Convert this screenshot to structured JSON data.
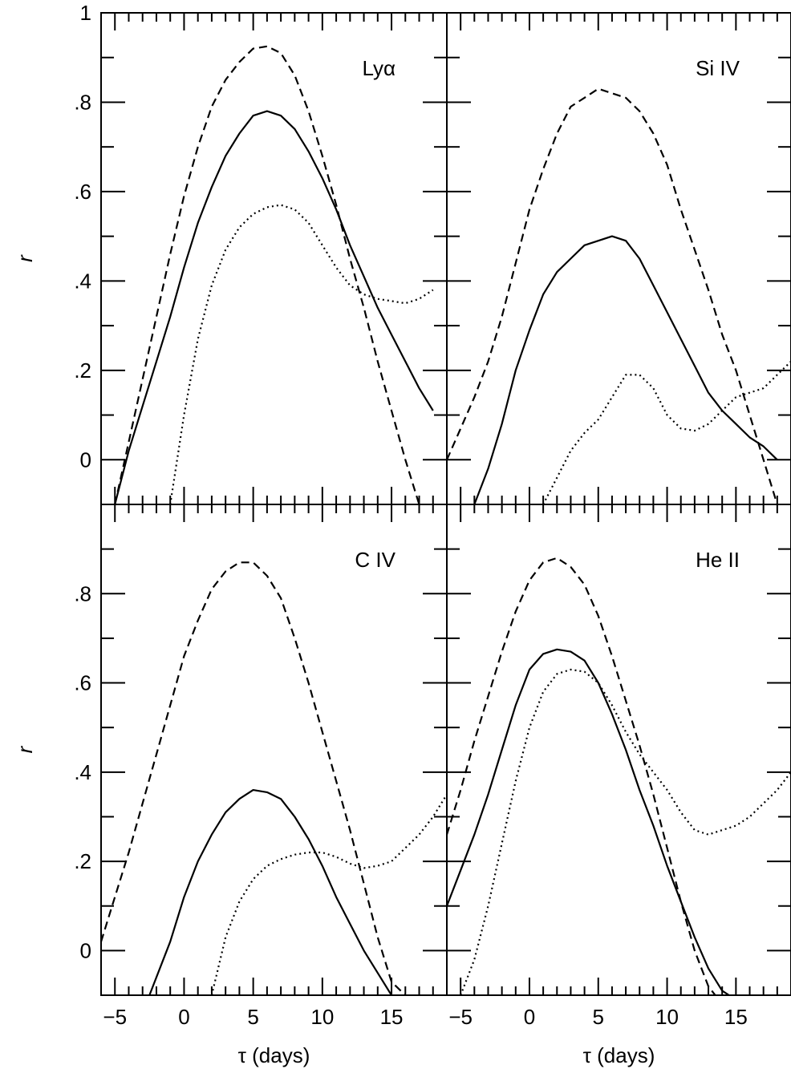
{
  "chart_data": [
    {
      "type": "line",
      "title": "",
      "panel_label": "Lyα",
      "xlabel": "",
      "ylabel": "r",
      "xlim": [
        -6,
        19
      ],
      "ylim": [
        -0.1,
        1
      ],
      "xticks": [],
      "yticks": [
        "1",
        ".8",
        ".6",
        ".4",
        ".2",
        "0"
      ],
      "legend": "none",
      "series": [
        {
          "style": "solid",
          "x": [
            -5,
            -4,
            -3,
            -2,
            -1,
            0,
            1,
            2,
            3,
            4,
            5,
            6,
            7,
            8,
            9,
            10,
            11,
            12,
            13,
            14,
            15,
            16,
            17,
            18
          ],
          "y": [
            -0.1,
            0.02,
            0.12,
            0.22,
            0.32,
            0.43,
            0.53,
            0.61,
            0.68,
            0.73,
            0.77,
            0.78,
            0.77,
            0.74,
            0.69,
            0.63,
            0.56,
            0.48,
            0.41,
            0.34,
            0.28,
            0.22,
            0.16,
            0.11
          ]
        },
        {
          "style": "dashed",
          "x": [
            -5,
            -4,
            -3,
            -2,
            -1,
            0,
            1,
            2,
            3,
            4,
            5,
            6,
            7,
            8,
            9,
            10,
            11,
            12,
            13,
            14,
            15,
            16,
            17
          ],
          "y": [
            -0.1,
            0.04,
            0.18,
            0.32,
            0.46,
            0.59,
            0.7,
            0.79,
            0.85,
            0.89,
            0.92,
            0.925,
            0.91,
            0.86,
            0.78,
            0.68,
            0.57,
            0.45,
            0.34,
            0.22,
            0.11,
            0.0,
            -0.1
          ]
        },
        {
          "style": "dotted",
          "x": [
            -1,
            0,
            1,
            2,
            3,
            4,
            5,
            6,
            7,
            8,
            9,
            10,
            11,
            12,
            13,
            14,
            15,
            16,
            17,
            18
          ],
          "y": [
            -0.1,
            0.1,
            0.27,
            0.39,
            0.47,
            0.52,
            0.55,
            0.565,
            0.57,
            0.56,
            0.53,
            0.48,
            0.43,
            0.39,
            0.37,
            0.36,
            0.355,
            0.35,
            0.36,
            0.38
          ]
        }
      ]
    },
    {
      "type": "line",
      "title": "",
      "panel_label": "Si IV",
      "xlabel": "",
      "ylabel": "",
      "xlim": [
        -6,
        19
      ],
      "ylim": [
        -0.1,
        1
      ],
      "xticks": [],
      "yticks": [],
      "legend": "none",
      "series": [
        {
          "style": "solid",
          "x": [
            -4,
            -3,
            -2,
            -1,
            0,
            1,
            2,
            3,
            4,
            5,
            6,
            7,
            8,
            9,
            10,
            11,
            12,
            13,
            14,
            15,
            16,
            17,
            18
          ],
          "y": [
            -0.1,
            -0.02,
            0.08,
            0.2,
            0.29,
            0.37,
            0.42,
            0.45,
            0.48,
            0.49,
            0.5,
            0.49,
            0.45,
            0.39,
            0.33,
            0.27,
            0.21,
            0.15,
            0.11,
            0.08,
            0.05,
            0.03,
            0.0
          ]
        },
        {
          "style": "dashed",
          "x": [
            -6,
            -5,
            -4,
            -3,
            -2,
            -1,
            0,
            1,
            2,
            3,
            4,
            5,
            6,
            7,
            8,
            9,
            10,
            11,
            12,
            13,
            14,
            15,
            16,
            17,
            18
          ],
          "y": [
            0.0,
            0.07,
            0.14,
            0.22,
            0.32,
            0.44,
            0.56,
            0.65,
            0.73,
            0.79,
            0.81,
            0.83,
            0.82,
            0.81,
            0.78,
            0.73,
            0.66,
            0.56,
            0.47,
            0.38,
            0.28,
            0.2,
            0.1,
            0.0,
            -0.1
          ]
        },
        {
          "style": "dotted",
          "x": [
            1,
            2,
            3,
            4,
            5,
            6,
            7,
            8,
            9,
            10,
            11,
            12,
            13,
            14,
            15,
            16,
            17,
            18,
            19
          ],
          "y": [
            -0.1,
            -0.04,
            0.02,
            0.06,
            0.09,
            0.14,
            0.19,
            0.19,
            0.16,
            0.1,
            0.07,
            0.065,
            0.08,
            0.11,
            0.14,
            0.15,
            0.16,
            0.19,
            0.22
          ]
        }
      ]
    },
    {
      "type": "line",
      "title": "",
      "panel_label": "C IV",
      "xlabel": "τ (days)",
      "ylabel": "r",
      "xlim": [
        -6,
        19
      ],
      "ylim": [
        -0.1,
        1
      ],
      "xticks": [
        "−5",
        "0",
        "5",
        "10",
        "15"
      ],
      "yticks": [
        ".8",
        ".6",
        ".4",
        ".2",
        "0"
      ],
      "legend": "none",
      "series": [
        {
          "style": "solid",
          "x": [
            -2.5,
            -1,
            0,
            1,
            2,
            3,
            4,
            5,
            6,
            7,
            8,
            9,
            10,
            11,
            12,
            13,
            14,
            15
          ],
          "y": [
            -0.1,
            0.02,
            0.12,
            0.2,
            0.26,
            0.31,
            0.34,
            0.36,
            0.355,
            0.34,
            0.3,
            0.25,
            0.19,
            0.12,
            0.06,
            0.0,
            -0.05,
            -0.1
          ]
        },
        {
          "style": "dashed",
          "x": [
            -6,
            -5,
            -4,
            -3,
            -2,
            -1,
            0,
            1,
            2,
            3,
            4,
            5,
            6,
            7,
            8,
            9,
            10,
            11,
            12,
            13,
            14,
            15,
            16
          ],
          "y": [
            0.02,
            0.12,
            0.22,
            0.33,
            0.44,
            0.55,
            0.66,
            0.74,
            0.81,
            0.85,
            0.87,
            0.87,
            0.84,
            0.79,
            0.7,
            0.6,
            0.49,
            0.38,
            0.27,
            0.15,
            0.03,
            -0.07,
            -0.1
          ]
        },
        {
          "style": "dotted",
          "x": [
            2,
            3,
            4,
            5,
            6,
            7,
            8,
            9,
            10,
            11,
            12,
            13,
            14,
            15,
            16,
            17,
            18,
            19
          ],
          "y": [
            -0.1,
            0.03,
            0.11,
            0.16,
            0.19,
            0.205,
            0.215,
            0.22,
            0.22,
            0.21,
            0.195,
            0.185,
            0.19,
            0.2,
            0.23,
            0.26,
            0.3,
            0.35
          ]
        }
      ]
    },
    {
      "type": "line",
      "title": "",
      "panel_label": "He II",
      "xlabel": "τ (days)",
      "ylabel": "",
      "xlim": [
        -6,
        19
      ],
      "ylim": [
        -0.1,
        1
      ],
      "xticks": [
        "−5",
        "0",
        "5",
        "10",
        "15"
      ],
      "yticks": [],
      "legend": "none",
      "series": [
        {
          "style": "solid",
          "x": [
            -6,
            -5,
            -4,
            -3,
            -2,
            -1,
            0,
            1,
            2,
            3,
            4,
            5,
            6,
            7,
            8,
            9,
            10,
            11,
            12,
            13,
            14,
            14.5
          ],
          "y": [
            0.1,
            0.18,
            0.26,
            0.35,
            0.45,
            0.55,
            0.63,
            0.665,
            0.675,
            0.67,
            0.65,
            0.6,
            0.53,
            0.45,
            0.36,
            0.28,
            0.19,
            0.11,
            0.03,
            -0.04,
            -0.09,
            -0.1
          ]
        },
        {
          "style": "dashed",
          "x": [
            -6,
            -5,
            -4,
            -3,
            -2,
            -1,
            0,
            1,
            2,
            3,
            4,
            5,
            6,
            7,
            8,
            9,
            10,
            11,
            12,
            13,
            13.5
          ],
          "y": [
            0.26,
            0.36,
            0.47,
            0.57,
            0.67,
            0.76,
            0.83,
            0.87,
            0.88,
            0.86,
            0.82,
            0.75,
            0.66,
            0.56,
            0.46,
            0.35,
            0.23,
            0.11,
            0.0,
            -0.08,
            -0.1
          ]
        },
        {
          "style": "dotted",
          "x": [
            -5,
            -4,
            -3,
            -2,
            -1,
            0,
            1,
            2,
            3,
            4,
            5,
            6,
            7,
            8,
            9,
            10,
            11,
            12,
            13,
            14,
            15,
            16,
            17,
            18,
            19
          ],
          "y": [
            -0.1,
            -0.02,
            0.1,
            0.24,
            0.38,
            0.5,
            0.58,
            0.62,
            0.63,
            0.625,
            0.6,
            0.55,
            0.49,
            0.44,
            0.4,
            0.36,
            0.31,
            0.27,
            0.26,
            0.27,
            0.28,
            0.3,
            0.33,
            0.36,
            0.4
          ]
        }
      ]
    }
  ]
}
